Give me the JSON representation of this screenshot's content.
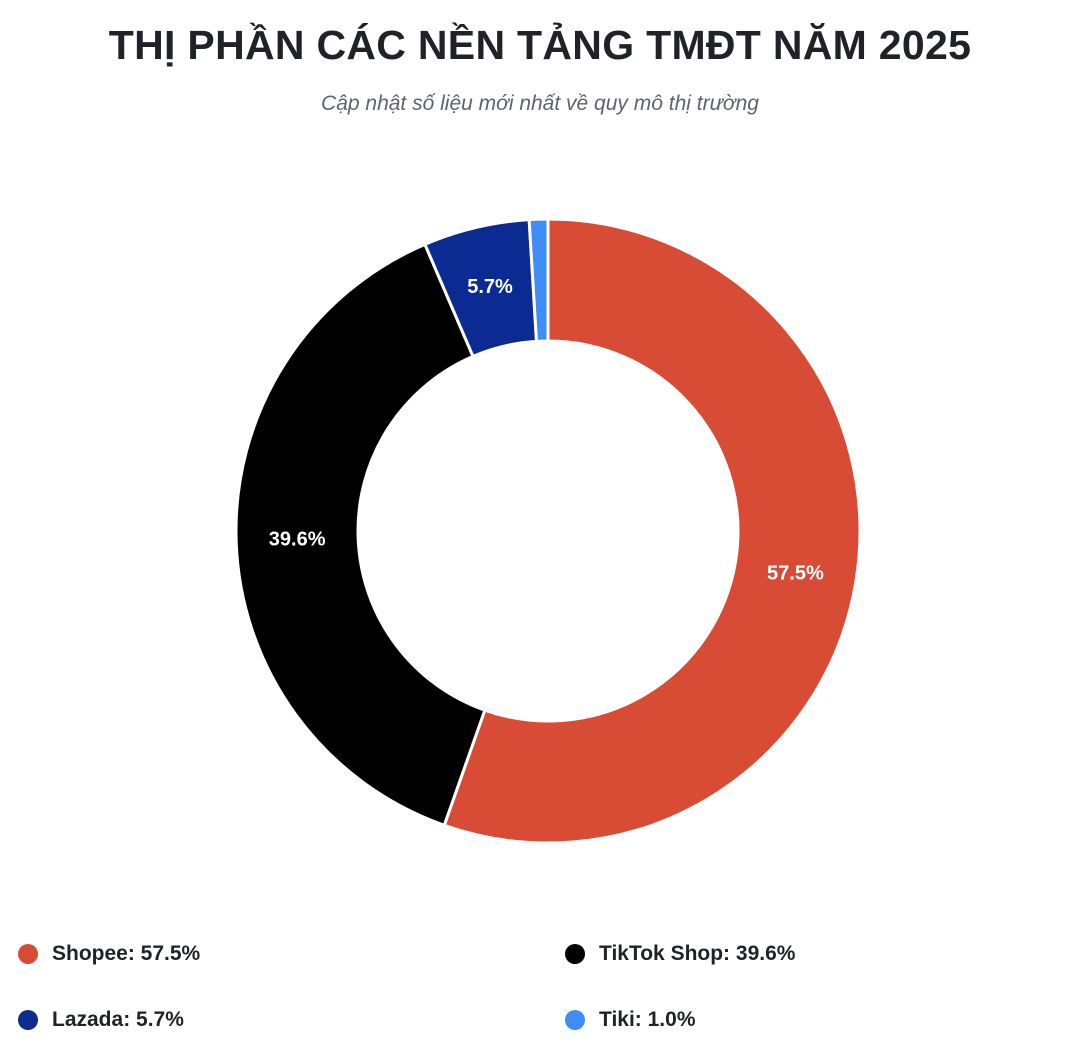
{
  "chart_data": {
    "type": "pie",
    "style": "donut",
    "title": "THỊ PHẦN CÁC NỀN TẢNG TMĐT NĂM 2025",
    "subtitle": "Cập nhật số liệu mới nhất về quy mô thị trường",
    "unit": "%",
    "categories": [
      "Shopee",
      "TikTok Shop",
      "Lazada",
      "Tiki"
    ],
    "values": [
      57.5,
      39.6,
      5.7,
      1.0
    ],
    "slice_labels": [
      "57.5%",
      "39.6%",
      "5.7%",
      ""
    ],
    "colors": [
      "#d84b34",
      "#000000",
      "#0b2b92",
      "#3f8df5"
    ],
    "legend_position": "bottom",
    "legend": [
      "Shopee: 57.5%",
      "TikTok Shop: 39.6%",
      "Lazada: 5.7%",
      "Tiki: 1.0%"
    ]
  }
}
